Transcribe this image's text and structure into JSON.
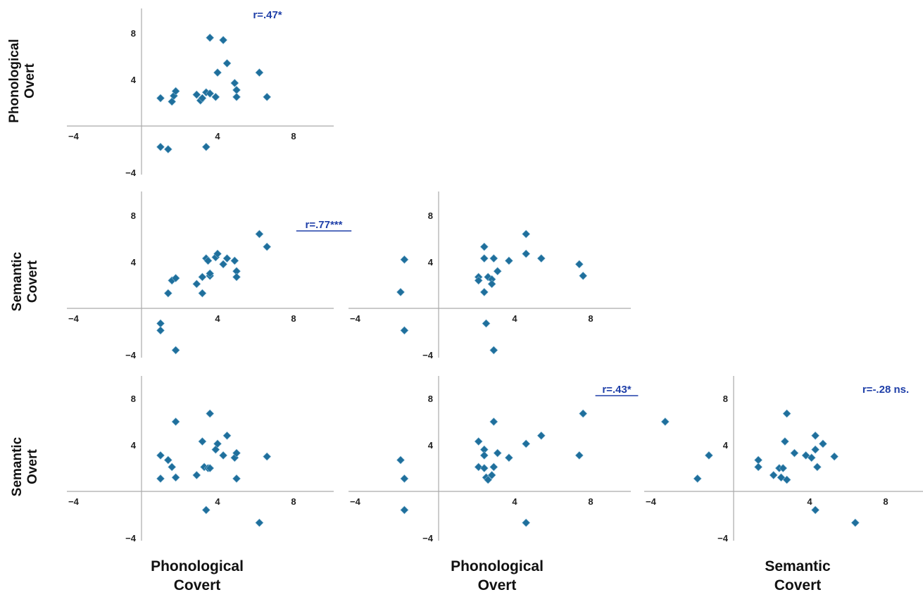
{
  "colors": {
    "marker": "#1f6f9c",
    "annotation": "#1f3fa8",
    "axis": "#aaaaaa"
  },
  "chart_data": [
    {
      "type": "scatter",
      "ylabel": "Phonological Overt",
      "xlabel": "Phonological Covert",
      "correlation": "r=.47*",
      "correlation_underlined": false,
      "xticks": [
        -4,
        4,
        8
      ],
      "yticks": [
        -4,
        4,
        8
      ],
      "xlim": [
        -4,
        10
      ],
      "ylim": [
        -4,
        10
      ],
      "points": [
        {
          "x": 1.0,
          "y": 2.4
        },
        {
          "x": 1.6,
          "y": 2.1
        },
        {
          "x": 1.7,
          "y": 2.6
        },
        {
          "x": 1.8,
          "y": 3.0
        },
        {
          "x": 2.9,
          "y": 2.7
        },
        {
          "x": 3.1,
          "y": 2.2
        },
        {
          "x": 3.2,
          "y": 2.4
        },
        {
          "x": 3.4,
          "y": 2.9
        },
        {
          "x": 3.6,
          "y": 2.8
        },
        {
          "x": 3.9,
          "y": 2.5
        },
        {
          "x": 3.6,
          "y": 7.6
        },
        {
          "x": 4.3,
          "y": 7.4
        },
        {
          "x": 4.5,
          "y": 5.4
        },
        {
          "x": 4.0,
          "y": 4.6
        },
        {
          "x": 4.9,
          "y": 3.7
        },
        {
          "x": 5.0,
          "y": 3.1
        },
        {
          "x": 5.0,
          "y": 2.5
        },
        {
          "x": 6.2,
          "y": 4.6
        },
        {
          "x": 6.6,
          "y": 2.5
        },
        {
          "x": 1.0,
          "y": -1.8
        },
        {
          "x": 1.4,
          "y": -2.0
        },
        {
          "x": 3.4,
          "y": -1.8
        }
      ]
    },
    {
      "type": "scatter",
      "ylabel": "Semantic Covert",
      "xlabel": "Phonological Covert",
      "correlation": "r=.77***",
      "correlation_underlined": true,
      "xticks": [
        -4,
        4,
        8
      ],
      "yticks": [
        -4,
        4,
        8
      ],
      "xlim": [
        -4,
        10
      ],
      "ylim": [
        -4,
        10
      ],
      "points": [
        {
          "x": 1.0,
          "y": -1.3
        },
        {
          "x": 1.0,
          "y": -1.9
        },
        {
          "x": 1.8,
          "y": -3.6
        },
        {
          "x": 1.4,
          "y": 1.3
        },
        {
          "x": 1.6,
          "y": 2.4
        },
        {
          "x": 1.8,
          "y": 2.6
        },
        {
          "x": 2.9,
          "y": 2.1
        },
        {
          "x": 3.2,
          "y": 2.7
        },
        {
          "x": 3.2,
          "y": 1.3
        },
        {
          "x": 3.4,
          "y": 4.3
        },
        {
          "x": 3.5,
          "y": 4.1
        },
        {
          "x": 3.6,
          "y": 2.8
        },
        {
          "x": 3.9,
          "y": 4.4
        },
        {
          "x": 4.0,
          "y": 4.7
        },
        {
          "x": 4.3,
          "y": 3.8
        },
        {
          "x": 4.5,
          "y": 4.3
        },
        {
          "x": 4.9,
          "y": 4.1
        },
        {
          "x": 5.0,
          "y": 3.2
        },
        {
          "x": 5.0,
          "y": 2.7
        },
        {
          "x": 6.2,
          "y": 6.4
        },
        {
          "x": 6.6,
          "y": 5.3
        },
        {
          "x": 3.6,
          "y": 3.0
        }
      ]
    },
    {
      "type": "scatter",
      "ylabel": "Semantic Covert",
      "xlabel": "Phonological Overt",
      "correlation": "",
      "correlation_underlined": false,
      "xticks": [
        -4,
        4,
        8
      ],
      "yticks": [
        -4,
        4,
        8
      ],
      "xlim": [
        -4,
        10
      ],
      "ylim": [
        -4,
        10
      ],
      "points": [
        {
          "x": -1.8,
          "y": 4.2
        },
        {
          "x": -2.0,
          "y": 1.4
        },
        {
          "x": -1.8,
          "y": -1.9
        },
        {
          "x": 2.1,
          "y": 2.7
        },
        {
          "x": 2.1,
          "y": 2.4
        },
        {
          "x": 2.4,
          "y": 5.3
        },
        {
          "x": 2.4,
          "y": 4.3
        },
        {
          "x": 2.4,
          "y": 1.4
        },
        {
          "x": 2.5,
          "y": -1.3
        },
        {
          "x": 2.6,
          "y": 2.7
        },
        {
          "x": 2.8,
          "y": 2.5
        },
        {
          "x": 2.8,
          "y": 2.1
        },
        {
          "x": 2.9,
          "y": -3.6
        },
        {
          "x": 2.9,
          "y": 4.3
        },
        {
          "x": 3.1,
          "y": 3.2
        },
        {
          "x": 3.7,
          "y": 4.1
        },
        {
          "x": 4.6,
          "y": 6.4
        },
        {
          "x": 4.6,
          "y": 4.7
        },
        {
          "x": 5.4,
          "y": 4.3
        },
        {
          "x": 7.4,
          "y": 3.8
        },
        {
          "x": 7.6,
          "y": 2.8
        }
      ]
    },
    {
      "type": "scatter",
      "ylabel": "Semantic Overt",
      "xlabel": "Phonological Covert",
      "correlation": "",
      "correlation_underlined": false,
      "xticks": [
        -4,
        4,
        8
      ],
      "yticks": [
        -4,
        4,
        8
      ],
      "xlim": [
        -4,
        10
      ],
      "ylim": [
        -4,
        10
      ],
      "points": [
        {
          "x": 1.0,
          "y": 3.1
        },
        {
          "x": 1.0,
          "y": 1.1
        },
        {
          "x": 1.4,
          "y": 2.7
        },
        {
          "x": 1.6,
          "y": 2.1
        },
        {
          "x": 1.8,
          "y": 6.0
        },
        {
          "x": 1.8,
          "y": 1.2
        },
        {
          "x": 2.9,
          "y": 1.4
        },
        {
          "x": 3.2,
          "y": 4.3
        },
        {
          "x": 3.3,
          "y": 2.1
        },
        {
          "x": 3.5,
          "y": 2.0
        },
        {
          "x": 3.6,
          "y": 6.7
        },
        {
          "x": 3.6,
          "y": 2.0
        },
        {
          "x": 3.9,
          "y": 3.6
        },
        {
          "x": 4.0,
          "y": 4.1
        },
        {
          "x": 4.3,
          "y": 3.1
        },
        {
          "x": 4.5,
          "y": 4.8
        },
        {
          "x": 4.9,
          "y": 2.9
        },
        {
          "x": 5.0,
          "y": 3.3
        },
        {
          "x": 5.0,
          "y": 1.1
        },
        {
          "x": 6.6,
          "y": 3.0
        },
        {
          "x": 3.4,
          "y": -1.6
        },
        {
          "x": 6.2,
          "y": -2.7
        }
      ]
    },
    {
      "type": "scatter",
      "ylabel": "Semantic Overt",
      "xlabel": "Phonological Overt",
      "correlation": "r=.43*",
      "correlation_underlined": true,
      "xticks": [
        -4,
        4,
        8
      ],
      "yticks": [
        -4,
        4,
        8
      ],
      "xlim": [
        -4,
        10
      ],
      "ylim": [
        -4,
        10
      ],
      "points": [
        {
          "x": -2.0,
          "y": 2.7
        },
        {
          "x": -1.8,
          "y": 1.1
        },
        {
          "x": -1.8,
          "y": -1.6
        },
        {
          "x": 2.1,
          "y": 4.3
        },
        {
          "x": 2.1,
          "y": 2.1
        },
        {
          "x": 2.4,
          "y": 3.6
        },
        {
          "x": 2.4,
          "y": 3.1
        },
        {
          "x": 2.4,
          "y": 2.0
        },
        {
          "x": 2.5,
          "y": 1.2
        },
        {
          "x": 2.6,
          "y": 1.0
        },
        {
          "x": 2.8,
          "y": 1.4
        },
        {
          "x": 2.9,
          "y": 2.1
        },
        {
          "x": 2.9,
          "y": 6.0
        },
        {
          "x": 3.1,
          "y": 3.3
        },
        {
          "x": 3.7,
          "y": 2.9
        },
        {
          "x": 4.6,
          "y": 4.1
        },
        {
          "x": 4.6,
          "y": -2.7
        },
        {
          "x": 5.4,
          "y": 4.8
        },
        {
          "x": 7.4,
          "y": 3.1
        },
        {
          "x": 7.6,
          "y": 6.7
        }
      ]
    },
    {
      "type": "scatter",
      "ylabel": "Semantic Overt",
      "xlabel": "Semantic Covert",
      "correlation": "r=-.28 ns.",
      "correlation_underlined": false,
      "xticks": [
        -4,
        4,
        8
      ],
      "yticks": [
        -4,
        4,
        8
      ],
      "xlim": [
        -4,
        10
      ],
      "ylim": [
        -4,
        10
      ],
      "points": [
        {
          "x": -3.6,
          "y": 6.0
        },
        {
          "x": -1.9,
          "y": 1.1
        },
        {
          "x": -1.3,
          "y": 3.1
        },
        {
          "x": 1.3,
          "y": 2.7
        },
        {
          "x": 1.3,
          "y": 2.1
        },
        {
          "x": 2.1,
          "y": 1.4
        },
        {
          "x": 2.4,
          "y": 2.0
        },
        {
          "x": 2.5,
          "y": 1.2
        },
        {
          "x": 2.6,
          "y": 2.0
        },
        {
          "x": 2.7,
          "y": 4.3
        },
        {
          "x": 2.8,
          "y": 1.0
        },
        {
          "x": 2.8,
          "y": 6.7
        },
        {
          "x": 3.2,
          "y": 3.3
        },
        {
          "x": 3.8,
          "y": 3.1
        },
        {
          "x": 4.1,
          "y": 2.9
        },
        {
          "x": 4.3,
          "y": 4.8
        },
        {
          "x": 4.3,
          "y": 3.6
        },
        {
          "x": 4.3,
          "y": -1.6
        },
        {
          "x": 4.4,
          "y": 2.1
        },
        {
          "x": 4.7,
          "y": 4.1
        },
        {
          "x": 5.3,
          "y": 3.0
        },
        {
          "x": 6.4,
          "y": -2.7
        }
      ]
    }
  ],
  "row_labels": [
    {
      "line1": "Phonological",
      "line2": "Overt"
    },
    {
      "line1": "Semantic",
      "line2": "Covert"
    },
    {
      "line1": "Semantic",
      "line2": "Overt"
    }
  ],
  "column_labels": [
    {
      "line1": "Phonological",
      "line2": "Covert"
    },
    {
      "line1": "Phonological",
      "line2": "Overt"
    },
    {
      "line1": "Semantic",
      "line2": "Covert"
    }
  ]
}
